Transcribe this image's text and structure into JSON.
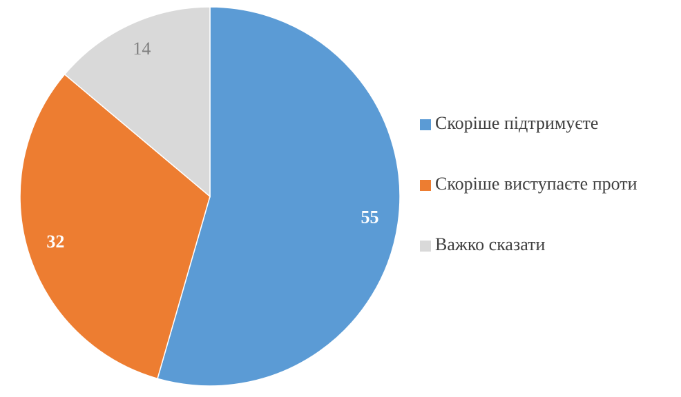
{
  "chart_data": {
    "type": "pie",
    "categories": [
      "Скоріше підтримуєте",
      "Скоріше виступаєте проти",
      "Важко сказати"
    ],
    "values": [
      55,
      32,
      14
    ],
    "colors": [
      "#5b9bd5",
      "#ed7d31",
      "#d9d9d9"
    ],
    "label_colors": [
      "#ffffff",
      "#ffffff",
      "#7f7f7f"
    ],
    "legend": "right"
  }
}
